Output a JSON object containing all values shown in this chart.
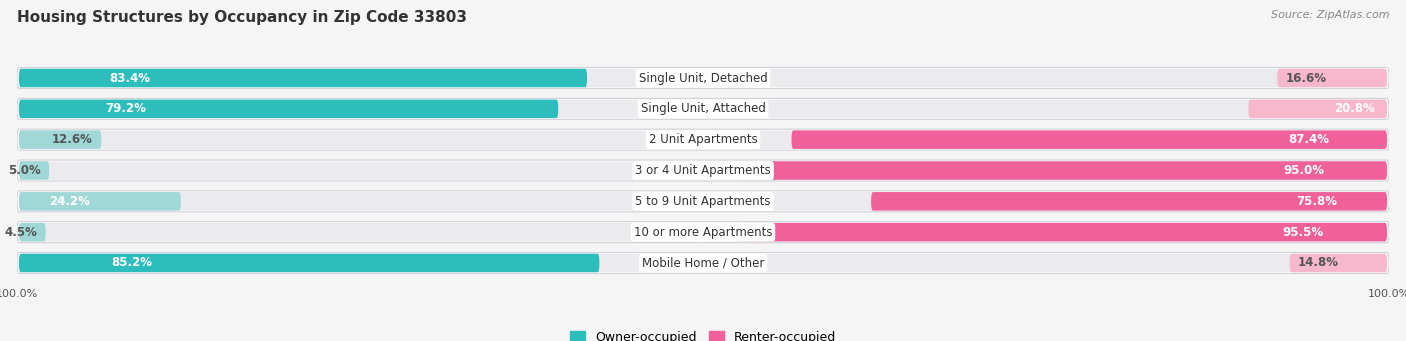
{
  "title": "Housing Structures by Occupancy in Zip Code 33803",
  "source": "Source: ZipAtlas.com",
  "categories": [
    "Single Unit, Detached",
    "Single Unit, Attached",
    "2 Unit Apartments",
    "3 or 4 Unit Apartments",
    "5 to 9 Unit Apartments",
    "10 or more Apartments",
    "Mobile Home / Other"
  ],
  "owner_pct": [
    83.4,
    79.2,
    12.6,
    5.0,
    24.2,
    4.5,
    85.2
  ],
  "renter_pct": [
    16.6,
    20.8,
    87.4,
    95.0,
    75.8,
    95.5,
    14.8
  ],
  "owner_color_dark": "#2dbdbd",
  "owner_color_light": "#a0d8d8",
  "renter_color_dark": "#f0609a",
  "renter_color_light": "#f8b8cc",
  "row_bg_color": "#e8e8ec",
  "row_bg_inner": "#f0f0f4",
  "background_color": "#f5f5f5",
  "title_fontsize": 11,
  "source_fontsize": 8,
  "label_fontsize": 8.5,
  "category_fontsize": 8.5,
  "legend_fontsize": 9,
  "owner_legend": "Owner-occupied",
  "renter_legend": "Renter-occupied",
  "xlim_left": -100,
  "xlim_right": 100
}
